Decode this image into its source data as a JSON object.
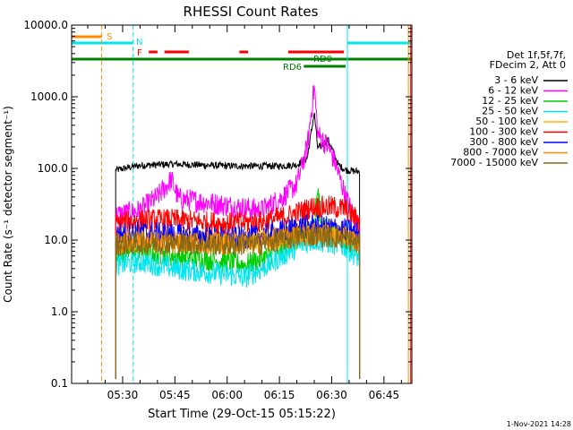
{
  "chart_data": {
    "type": "line",
    "title": "RHESSI Count Rates",
    "xlabel": "Start Time (29-Oct-15 05:15:22)",
    "ylabel": "Count Rate (s⁻¹ detector segment⁻¹)",
    "y_scale": "log",
    "ylim": [
      0.1,
      10000
    ],
    "xlim": [
      "05:15:22",
      "06:53:00"
    ],
    "x_ticks": [
      "05:30",
      "05:45",
      "06:00",
      "06:15",
      "06:30",
      "06:45"
    ],
    "y_ticks": [
      "0.1",
      "1.0",
      "10.0",
      "100.0",
      "1000.0",
      "10000.0"
    ],
    "legend_header": [
      "Det 1f,5f,7f,",
      "FDecim 2, Att 0"
    ],
    "footer": "1-Nov-2021 14:28",
    "flags": [
      {
        "label": "S",
        "color": "#ff8c00",
        "segments": [
          [
            "05:15:22",
            "05:24:00"
          ]
        ]
      },
      {
        "label": "N",
        "color": "#00e5ee",
        "segments": [
          [
            "05:15:22",
            "05:33:00"
          ],
          [
            "06:34:30",
            "06:53:00"
          ]
        ]
      },
      {
        "label": "F",
        "color": "#ff0000",
        "segments": [
          [
            "05:37:30",
            "05:40:00"
          ],
          [
            "05:42:00",
            "05:49:00"
          ],
          [
            "06:03:30",
            "06:06:00"
          ],
          [
            "06:17:30",
            "06:33:30"
          ]
        ]
      },
      {
        "label": "",
        "color": "#008000",
        "segments": [
          [
            "05:15:22",
            "06:53:00"
          ]
        ]
      },
      {
        "label": "RD0",
        "color": "#008000",
        "segments": []
      },
      {
        "label": "RD6",
        "color": "#008000",
        "segments": [
          [
            "06:22:00",
            "06:34:00"
          ]
        ]
      }
    ],
    "vlines": [
      {
        "time": "05:24:00",
        "color": "#ff8c00",
        "dashed": true
      },
      {
        "time": "05:33:00",
        "color": "#00e5ee",
        "dashed": true
      },
      {
        "time": "06:34:30",
        "color": "#00e5ee",
        "dashed": false
      },
      {
        "time": "06:52:00",
        "color": "#ff8c00",
        "dashed": false
      },
      {
        "time": "06:52:40",
        "color": "#ff0000",
        "dashed": false
      }
    ],
    "series": [
      {
        "name": "3 - 6 keV",
        "color": "#000000",
        "points": [
          [
            "05:28",
            95
          ],
          [
            "05:35",
            110
          ],
          [
            "05:45",
            115
          ],
          [
            "06:00",
            108
          ],
          [
            "06:15",
            108
          ],
          [
            "06:20",
            112
          ],
          [
            "06:23",
            140
          ],
          [
            "06:25",
            600
          ],
          [
            "06:26",
            190
          ],
          [
            "06:29",
            250
          ],
          [
            "06:32",
            110
          ],
          [
            "06:34",
            95
          ],
          [
            "06:38",
            90
          ]
        ]
      },
      {
        "name": "6 - 12 keV",
        "color": "#ff00ff",
        "points": [
          [
            "05:28",
            22
          ],
          [
            "05:35",
            26
          ],
          [
            "05:40",
            40
          ],
          [
            "05:44",
            70
          ],
          [
            "05:46",
            38
          ],
          [
            "05:55",
            33
          ],
          [
            "06:05",
            28
          ],
          [
            "06:10",
            26
          ],
          [
            "06:16",
            40
          ],
          [
            "06:20",
            60
          ],
          [
            "06:23",
            200
          ],
          [
            "06:25",
            1400
          ],
          [
            "06:26",
            300
          ],
          [
            "06:29",
            200
          ],
          [
            "06:31",
            120
          ],
          [
            "06:34",
            40
          ],
          [
            "06:38",
            14
          ]
        ]
      },
      {
        "name": "12 - 25 keV",
        "color": "#00cc00",
        "points": [
          [
            "05:28",
            6.5
          ],
          [
            "05:35",
            7
          ],
          [
            "05:45",
            6
          ],
          [
            "06:00",
            5
          ],
          [
            "06:05",
            4.5
          ],
          [
            "06:10",
            5.5
          ],
          [
            "06:18",
            9
          ],
          [
            "06:22",
            11
          ],
          [
            "06:25",
            17
          ],
          [
            "06:26",
            50
          ],
          [
            "06:27",
            15
          ],
          [
            "06:30",
            13
          ],
          [
            "06:34",
            10
          ],
          [
            "06:38",
            8
          ]
        ]
      },
      {
        "name": "25 - 50 keV",
        "color": "#00e5ee",
        "points": [
          [
            "05:28",
            4.5
          ],
          [
            "05:35",
            5
          ],
          [
            "05:45",
            4
          ],
          [
            "06:00",
            3.3
          ],
          [
            "06:05",
            3
          ],
          [
            "06:10",
            4
          ],
          [
            "06:18",
            7
          ],
          [
            "06:22",
            9
          ],
          [
            "06:25",
            10
          ],
          [
            "06:30",
            9
          ],
          [
            "06:34",
            8
          ],
          [
            "06:38",
            5.5
          ]
        ]
      },
      {
        "name": "50 - 100 keV",
        "color": "#ffb300",
        "points": [
          [
            "05:28",
            9.5
          ],
          [
            "05:35",
            10
          ],
          [
            "05:45",
            10
          ],
          [
            "06:00",
            9.5
          ],
          [
            "06:10",
            10
          ],
          [
            "06:18",
            12
          ],
          [
            "06:22",
            13
          ],
          [
            "06:25",
            13
          ],
          [
            "06:30",
            12.5
          ],
          [
            "06:34",
            12
          ],
          [
            "06:38",
            10
          ]
        ]
      },
      {
        "name": "100 - 300 keV",
        "color": "#ff0000",
        "points": [
          [
            "05:28",
            17
          ],
          [
            "05:35",
            19
          ],
          [
            "05:45",
            19
          ],
          [
            "06:00",
            17
          ],
          [
            "06:10",
            18
          ],
          [
            "06:18",
            22
          ],
          [
            "06:22",
            26
          ],
          [
            "06:25",
            29
          ],
          [
            "06:30",
            29
          ],
          [
            "06:34",
            27
          ],
          [
            "06:38",
            18
          ]
        ]
      },
      {
        "name": "300 - 800 keV",
        "color": "#0000ff",
        "points": [
          [
            "05:28",
            12
          ],
          [
            "05:35",
            13
          ],
          [
            "05:45",
            12
          ],
          [
            "06:00",
            10.5
          ],
          [
            "06:10",
            11.5
          ],
          [
            "06:18",
            14
          ],
          [
            "06:22",
            16
          ],
          [
            "06:25",
            16
          ],
          [
            "06:30",
            15
          ],
          [
            "06:34",
            14
          ],
          [
            "06:38",
            12.5
          ]
        ]
      },
      {
        "name": "800 - 7000 keV",
        "color": "#ff8c00",
        "points": [
          [
            "05:28",
            9
          ],
          [
            "05:35",
            9.5
          ],
          [
            "05:45",
            9.5
          ],
          [
            "06:00",
            9
          ],
          [
            "06:10",
            9.5
          ],
          [
            "06:18",
            11
          ],
          [
            "06:22",
            12
          ],
          [
            "06:25",
            12
          ],
          [
            "06:30",
            11.5
          ],
          [
            "06:34",
            11
          ],
          [
            "06:38",
            9
          ]
        ]
      },
      {
        "name": "7000 - 15000 keV",
        "color": "#8b6914",
        "points": [
          [
            "05:28",
            8.5
          ],
          [
            "05:35",
            9
          ],
          [
            "05:45",
            9
          ],
          [
            "06:00",
            8.5
          ],
          [
            "06:10",
            9
          ],
          [
            "06:18",
            10.5
          ],
          [
            "06:22",
            11.5
          ],
          [
            "06:25",
            11.5
          ],
          [
            "06:30",
            11
          ],
          [
            "06:34",
            10.5
          ],
          [
            "06:38",
            8.5
          ]
        ]
      }
    ]
  }
}
